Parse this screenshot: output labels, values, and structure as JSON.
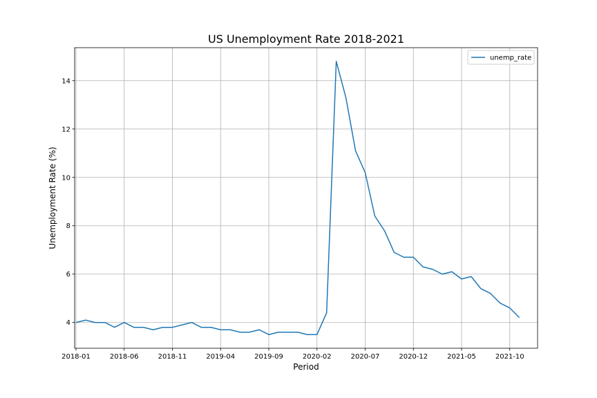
{
  "chart_data": {
    "type": "line",
    "title": "US Unemployment Rate 2018-2021",
    "xlabel": "Period",
    "ylabel": "Unemployment Rate (%)",
    "x": [
      "2018-01",
      "2018-02",
      "2018-03",
      "2018-04",
      "2018-05",
      "2018-06",
      "2018-07",
      "2018-08",
      "2018-09",
      "2018-10",
      "2018-11",
      "2018-12",
      "2019-01",
      "2019-02",
      "2019-03",
      "2019-04",
      "2019-05",
      "2019-06",
      "2019-07",
      "2019-08",
      "2019-09",
      "2019-10",
      "2019-11",
      "2019-12",
      "2020-01",
      "2020-02",
      "2020-03",
      "2020-04",
      "2020-05",
      "2020-06",
      "2020-07",
      "2020-08",
      "2020-09",
      "2020-10",
      "2020-11",
      "2020-12",
      "2021-01",
      "2021-02",
      "2021-03",
      "2021-04",
      "2021-05",
      "2021-06",
      "2021-07",
      "2021-08",
      "2021-09",
      "2021-10",
      "2021-11"
    ],
    "series": [
      {
        "name": "unemp_rate",
        "color": "#1f77b4",
        "values": [
          4.0,
          4.1,
          4.0,
          4.0,
          3.8,
          4.0,
          3.8,
          3.8,
          3.7,
          3.8,
          3.8,
          3.9,
          4.0,
          3.8,
          3.8,
          3.7,
          3.7,
          3.6,
          3.6,
          3.7,
          3.5,
          3.6,
          3.6,
          3.6,
          3.5,
          3.5,
          4.4,
          14.8,
          13.3,
          11.1,
          10.2,
          8.4,
          7.8,
          6.9,
          6.7,
          6.7,
          6.3,
          6.2,
          6.0,
          6.1,
          5.8,
          5.9,
          5.4,
          5.2,
          4.8,
          4.6,
          4.2
        ]
      }
    ],
    "xticks": [
      "2018-01",
      "2018-06",
      "2018-11",
      "2019-04",
      "2019-09",
      "2020-02",
      "2020-07",
      "2020-12",
      "2021-05",
      "2021-10"
    ],
    "yticks": [
      4,
      6,
      8,
      10,
      12,
      14
    ],
    "ylim": [
      2.935,
      15.365
    ],
    "grid": true,
    "legend_position": "top-right"
  }
}
